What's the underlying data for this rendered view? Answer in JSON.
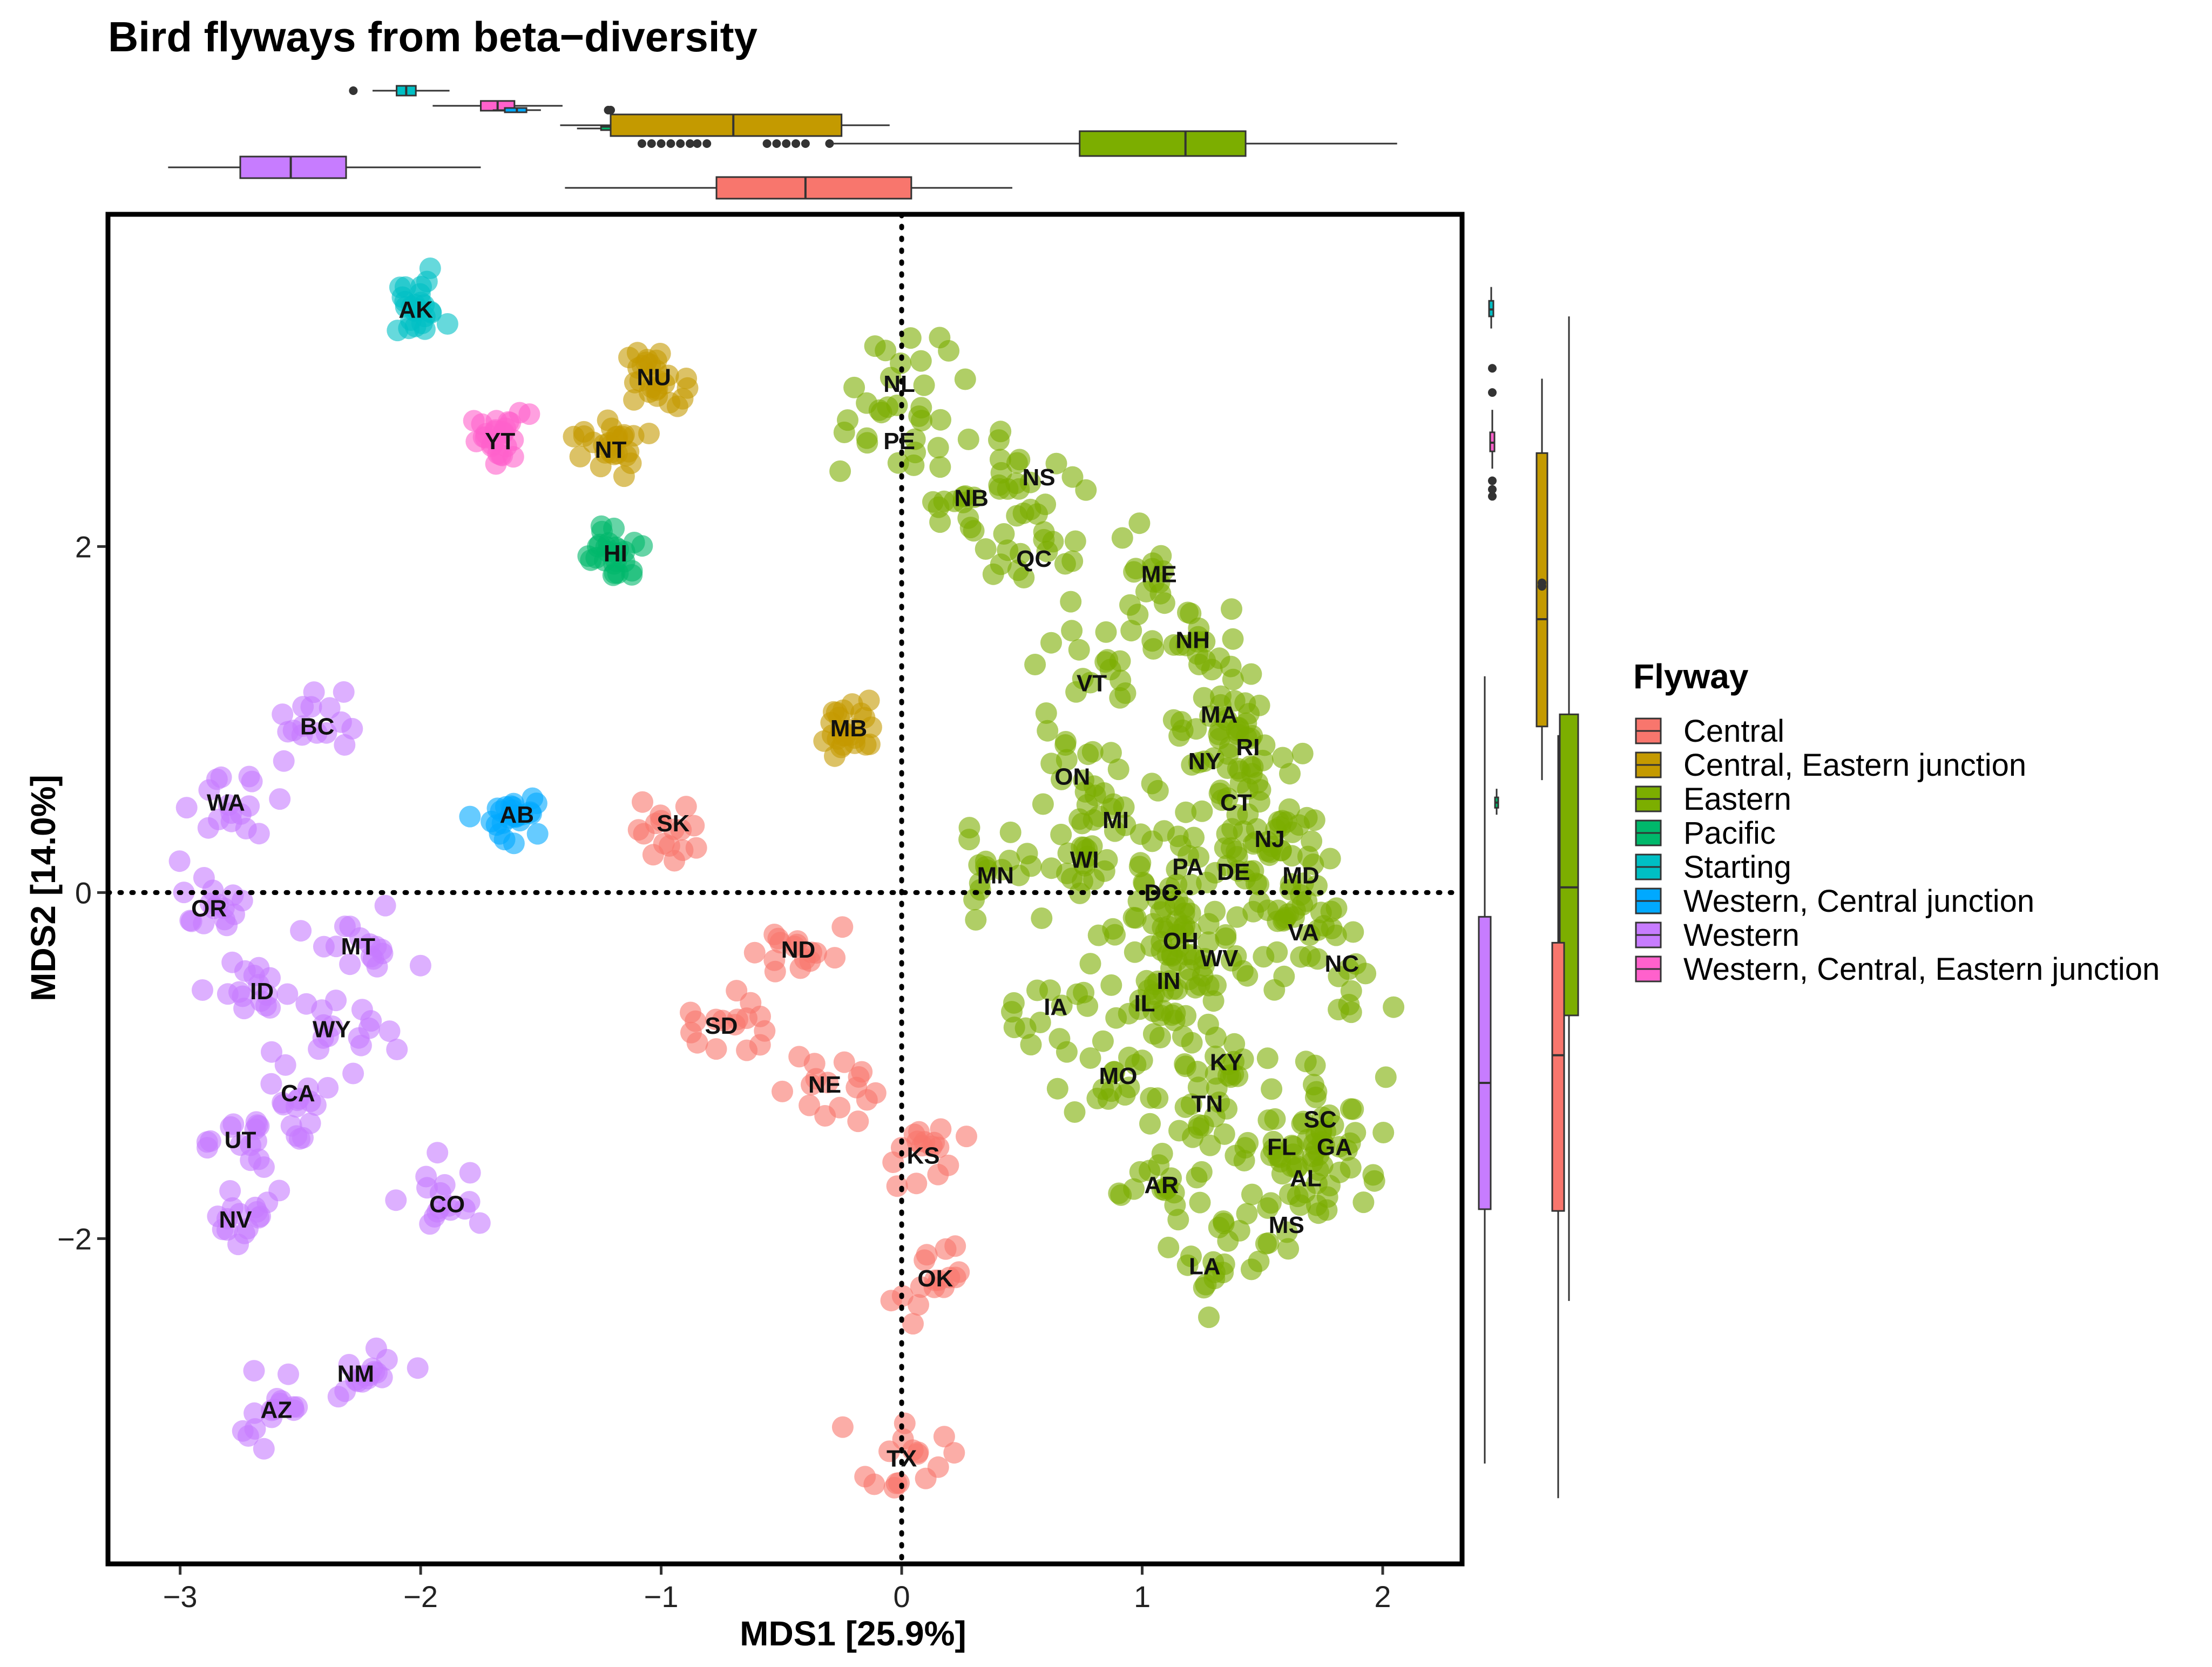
{
  "chart_data": {
    "type": "scatter",
    "title": "Bird flyways from beta−diversity",
    "xlabel": "MDS1 [25.9%]",
    "ylabel": "MDS2 [14.0%]",
    "xlim": [
      -3.3,
      2.33
    ],
    "ylim": [
      -3.88,
      3.92
    ],
    "xticks": [
      -3,
      -2,
      -1,
      0,
      1,
      2
    ],
    "xtick_labels": [
      "−3",
      "−2",
      "−1",
      "0",
      "1",
      "2"
    ],
    "yticks": [
      -2,
      0,
      2
    ],
    "ytick_labels": [
      "−2",
      "0",
      "2"
    ],
    "reference_lines": [
      {
        "axis": "x",
        "value": 0,
        "style": "dotted"
      },
      {
        "axis": "y",
        "value": 0,
        "style": "dotted"
      }
    ],
    "legend": {
      "title": "Flyway",
      "entries": [
        {
          "name": "Central",
          "color": "#F8766D"
        },
        {
          "name": "Central, Eastern junction",
          "color": "#C49A00"
        },
        {
          "name": "Eastern",
          "color": "#7CAE00"
        },
        {
          "name": "Pacific",
          "color": "#00B86B"
        },
        {
          "name": "Starting",
          "color": "#00BFC4"
        },
        {
          "name": "Western, Central junction",
          "color": "#00A9FF"
        },
        {
          "name": "Western",
          "color": "#C77CFF"
        },
        {
          "name": "Western, Central, Eastern junction",
          "color": "#FF61CC"
        }
      ]
    },
    "labels": [
      {
        "label": "AK",
        "x": -2.02,
        "y": 3.37,
        "group": "Starting"
      },
      {
        "label": "YT",
        "x": -1.67,
        "y": 2.61,
        "group": "Western, Central, Eastern junction"
      },
      {
        "label": "NU",
        "x": -1.03,
        "y": 2.98,
        "group": "Central, Eastern junction"
      },
      {
        "label": "NT",
        "x": -1.21,
        "y": 2.56,
        "group": "Central, Eastern junction"
      },
      {
        "label": "HI",
        "x": -1.19,
        "y": 1.96,
        "group": "Pacific"
      },
      {
        "label": "AB",
        "x": -1.6,
        "y": 0.45,
        "group": "Western, Central junction"
      },
      {
        "label": "MB",
        "x": -0.22,
        "y": 0.95,
        "group": "Central, Eastern junction"
      },
      {
        "label": "SK",
        "x": -0.95,
        "y": 0.4,
        "group": "Central"
      },
      {
        "label": "ND",
        "x": -0.43,
        "y": -0.33,
        "group": "Central"
      },
      {
        "label": "SD",
        "x": -0.75,
        "y": -0.77,
        "group": "Central"
      },
      {
        "label": "NE",
        "x": -0.32,
        "y": -1.11,
        "group": "Central"
      },
      {
        "label": "KS",
        "x": 0.09,
        "y": -1.52,
        "group": "Central"
      },
      {
        "label": "OK",
        "x": 0.14,
        "y": -2.23,
        "group": "Central"
      },
      {
        "label": "TX",
        "x": 0.0,
        "y": -3.27,
        "group": "Central"
      },
      {
        "label": "BC",
        "x": -2.43,
        "y": 0.96,
        "group": "Western"
      },
      {
        "label": "WA",
        "x": -2.81,
        "y": 0.52,
        "group": "Western"
      },
      {
        "label": "OR",
        "x": -2.88,
        "y": -0.09,
        "group": "Western"
      },
      {
        "label": "MT",
        "x": -2.26,
        "y": -0.31,
        "group": "Western"
      },
      {
        "label": "ID",
        "x": -2.66,
        "y": -0.57,
        "group": "Western"
      },
      {
        "label": "WY",
        "x": -2.37,
        "y": -0.79,
        "group": "Western"
      },
      {
        "label": "CA",
        "x": -2.51,
        "y": -1.16,
        "group": "Western"
      },
      {
        "label": "UT",
        "x": -2.75,
        "y": -1.43,
        "group": "Western"
      },
      {
        "label": "NV",
        "x": -2.77,
        "y": -1.89,
        "group": "Western"
      },
      {
        "label": "CO",
        "x": -1.89,
        "y": -1.8,
        "group": "Western"
      },
      {
        "label": "NM",
        "x": -2.27,
        "y": -2.78,
        "group": "Western"
      },
      {
        "label": "AZ",
        "x": -2.6,
        "y": -2.99,
        "group": "Western"
      },
      {
        "label": "NL",
        "x": -0.01,
        "y": 2.94,
        "group": "Eastern"
      },
      {
        "label": "PE",
        "x": -0.01,
        "y": 2.61,
        "group": "Eastern"
      },
      {
        "label": "NB",
        "x": 0.29,
        "y": 2.28,
        "group": "Eastern"
      },
      {
        "label": "NS",
        "x": 0.57,
        "y": 2.4,
        "group": "Eastern"
      },
      {
        "label": "QC",
        "x": 0.55,
        "y": 1.93,
        "group": "Eastern"
      },
      {
        "label": "ME",
        "x": 1.07,
        "y": 1.84,
        "group": "Eastern"
      },
      {
        "label": "NH",
        "x": 1.21,
        "y": 1.46,
        "group": "Eastern"
      },
      {
        "label": "VT",
        "x": 0.79,
        "y": 1.21,
        "group": "Eastern"
      },
      {
        "label": "MA",
        "x": 1.32,
        "y": 1.03,
        "group": "Eastern"
      },
      {
        "label": "RI",
        "x": 1.44,
        "y": 0.84,
        "group": "Eastern"
      },
      {
        "label": "NY",
        "x": 1.26,
        "y": 0.76,
        "group": "Eastern"
      },
      {
        "label": "ON",
        "x": 0.71,
        "y": 0.67,
        "group": "Eastern"
      },
      {
        "label": "CT",
        "x": 1.39,
        "y": 0.52,
        "group": "Eastern"
      },
      {
        "label": "MI",
        "x": 0.89,
        "y": 0.42,
        "group": "Eastern"
      },
      {
        "label": "NJ",
        "x": 1.53,
        "y": 0.31,
        "group": "Eastern"
      },
      {
        "label": "WI",
        "x": 0.76,
        "y": 0.19,
        "group": "Eastern"
      },
      {
        "label": "PA",
        "x": 1.19,
        "y": 0.15,
        "group": "Eastern"
      },
      {
        "label": "DE",
        "x": 1.38,
        "y": 0.12,
        "group": "Eastern"
      },
      {
        "label": "MD",
        "x": 1.66,
        "y": 0.1,
        "group": "Eastern"
      },
      {
        "label": "MN",
        "x": 0.39,
        "y": 0.1,
        "group": "Eastern"
      },
      {
        "label": "DC",
        "x": 1.08,
        "y": 0.0,
        "group": "Eastern"
      },
      {
        "label": "VA",
        "x": 1.67,
        "y": -0.23,
        "group": "Eastern"
      },
      {
        "label": "OH",
        "x": 1.16,
        "y": -0.28,
        "group": "Eastern"
      },
      {
        "label": "WV",
        "x": 1.32,
        "y": -0.38,
        "group": "Eastern"
      },
      {
        "label": "NC",
        "x": 1.83,
        "y": -0.41,
        "group": "Eastern"
      },
      {
        "label": "IN",
        "x": 1.11,
        "y": -0.51,
        "group": "Eastern"
      },
      {
        "label": "IL",
        "x": 1.01,
        "y": -0.64,
        "group": "Eastern"
      },
      {
        "label": "IA",
        "x": 0.64,
        "y": -0.66,
        "group": "Eastern"
      },
      {
        "label": "KY",
        "x": 1.35,
        "y": -0.98,
        "group": "Eastern"
      },
      {
        "label": "MO",
        "x": 0.9,
        "y": -1.06,
        "group": "Eastern"
      },
      {
        "label": "TN",
        "x": 1.27,
        "y": -1.22,
        "group": "Eastern"
      },
      {
        "label": "SC",
        "x": 1.74,
        "y": -1.31,
        "group": "Eastern"
      },
      {
        "label": "FL",
        "x": 1.58,
        "y": -1.47,
        "group": "Eastern"
      },
      {
        "label": "GA",
        "x": 1.8,
        "y": -1.47,
        "group": "Eastern"
      },
      {
        "label": "AL",
        "x": 1.68,
        "y": -1.65,
        "group": "Eastern"
      },
      {
        "label": "AR",
        "x": 1.08,
        "y": -1.69,
        "group": "Eastern"
      },
      {
        "label": "MS",
        "x": 1.6,
        "y": -1.92,
        "group": "Eastern"
      },
      {
        "label": "LA",
        "x": 1.26,
        "y": -2.16,
        "group": "Eastern"
      }
    ],
    "marginal_boxplots": {
      "mds1": [
        {
          "group": "Starting",
          "whisker_low": -2.2,
          "q1": -2.1,
          "median": -2.06,
          "q3": -2.02,
          "whisker_high": -1.88,
          "outliers": [
            -2.28
          ]
        },
        {
          "group": "Western, Central, Eastern junction",
          "whisker_low": -1.95,
          "q1": -1.75,
          "median": -1.68,
          "q3": -1.61,
          "whisker_high": -1.41,
          "outliers": []
        },
        {
          "group": "Pacific",
          "whisker_low": -1.35,
          "q1": -1.25,
          "median": -1.2,
          "q3": -1.15,
          "whisker_high": -1.05,
          "outliers": []
        },
        {
          "group": "Western, Central junction",
          "whisker_low": -1.7,
          "q1": -1.65,
          "median": -1.6,
          "q3": -1.56,
          "whisker_high": -1.5,
          "outliers": [
            -1.22,
            -1.21
          ]
        },
        {
          "group": "Central, Eastern junction",
          "whisker_low": -1.42,
          "q1": -1.21,
          "median": -0.7,
          "q3": -0.25,
          "whisker_high": -0.05,
          "outliers": [
            -1.08,
            -1.04,
            -1.0,
            -0.96,
            -0.92,
            -0.88,
            -0.85,
            -0.81,
            -0.56,
            -0.52,
            -0.48,
            -0.44,
            -0.4,
            -0.3
          ]
        },
        {
          "group": "Eastern",
          "whisker_low": -0.29,
          "q1": 0.74,
          "median": 1.18,
          "q3": 1.43,
          "whisker_high": 2.06,
          "outliers": []
        },
        {
          "group": "Western",
          "whisker_low": -3.05,
          "q1": -2.75,
          "median": -2.54,
          "q3": -2.31,
          "whisker_high": -1.75,
          "outliers": []
        },
        {
          "group": "Central",
          "whisker_low": -1.4,
          "q1": -0.77,
          "median": -0.4,
          "q3": 0.04,
          "whisker_high": 0.46,
          "outliers": []
        }
      ],
      "mds2": [
        {
          "group": "Starting",
          "whisker_low": 3.26,
          "q1": 3.33,
          "median": 3.37,
          "q3": 3.42,
          "whisker_high": 3.5,
          "outliers": []
        },
        {
          "group": "Western, Central, Eastern junction",
          "whisker_low": 2.45,
          "q1": 2.55,
          "median": 2.6,
          "q3": 2.66,
          "whisker_high": 2.79,
          "outliers": [
            2.29,
            2.33,
            2.38,
            3.03,
            2.89
          ]
        },
        {
          "group": "Pacific",
          "whisker_low": 0.45,
          "q1": 0.49,
          "median": 0.52,
          "q3": 0.55,
          "whisker_high": 0.6,
          "outliers": []
        },
        {
          "group": "Central, Eastern junction",
          "whisker_low": 0.65,
          "q1": 0.96,
          "median": 1.58,
          "q3": 2.54,
          "whisker_high": 2.97,
          "outliers": [
            1.77,
            1.79
          ]
        },
        {
          "group": "Eastern",
          "whisker_low": -2.36,
          "q1": -0.71,
          "median": 0.03,
          "q3": 1.03,
          "whisker_high": 3.33,
          "outliers": []
        },
        {
          "group": "Western",
          "whisker_low": -3.3,
          "q1": -1.83,
          "median": -1.1,
          "q3": -0.14,
          "whisker_high": 1.25,
          "outliers": []
        },
        {
          "group": "Central",
          "whisker_low": -3.5,
          "q1": -1.84,
          "median": -0.94,
          "q3": -0.29,
          "whisker_high": 0.91,
          "outliers": []
        }
      ]
    }
  }
}
